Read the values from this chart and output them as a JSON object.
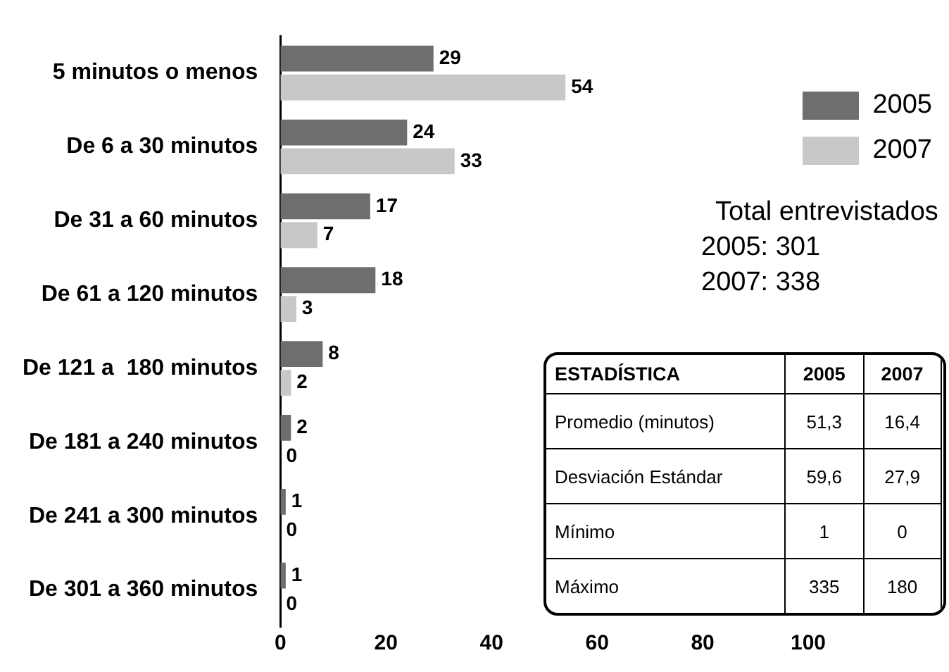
{
  "chart_data": [
    {
      "type": "bar",
      "orientation": "horizontal",
      "categories": [
        "5 minutos o menos",
        "De 6 a 30 minutos",
        "De 31 a 60 minutos",
        "De 61 a 120 minutos",
        "De 121 a  180 minutos",
        "De 181 a 240 minutos",
        "De 241 a 300 minutos",
        "De 301 a 360 minutos"
      ],
      "series": [
        {
          "name": "2005",
          "color": "#6e6e6e",
          "values": [
            29,
            24,
            17,
            18,
            8,
            2,
            1,
            1
          ]
        },
        {
          "name": "2007",
          "color": "#c8c8c8",
          "values": [
            54,
            33,
            7,
            3,
            2,
            0,
            0,
            0
          ]
        }
      ],
      "xlim": [
        0,
        100
      ],
      "xticks": [
        0,
        20,
        40,
        60,
        80,
        100
      ],
      "data_labels": true,
      "legend": "top right",
      "annotations": [
        "Total entrevistados",
        "2005: 301",
        "2007: 338"
      ]
    },
    {
      "type": "other",
      "categories": [
        "ESTADÍSTICA",
        "2005",
        "2007"
      ],
      "y_categories": [
        "Promedio (minutos)",
        "Desviación Estándar",
        "Mínimo",
        "Máximo"
      ],
      "cell_labels": [
        [
          "51,3",
          "16,4"
        ],
        [
          "59,6",
          "27,9"
        ],
        [
          "1",
          "0"
        ],
        [
          "335",
          "180"
        ]
      ]
    }
  ]
}
